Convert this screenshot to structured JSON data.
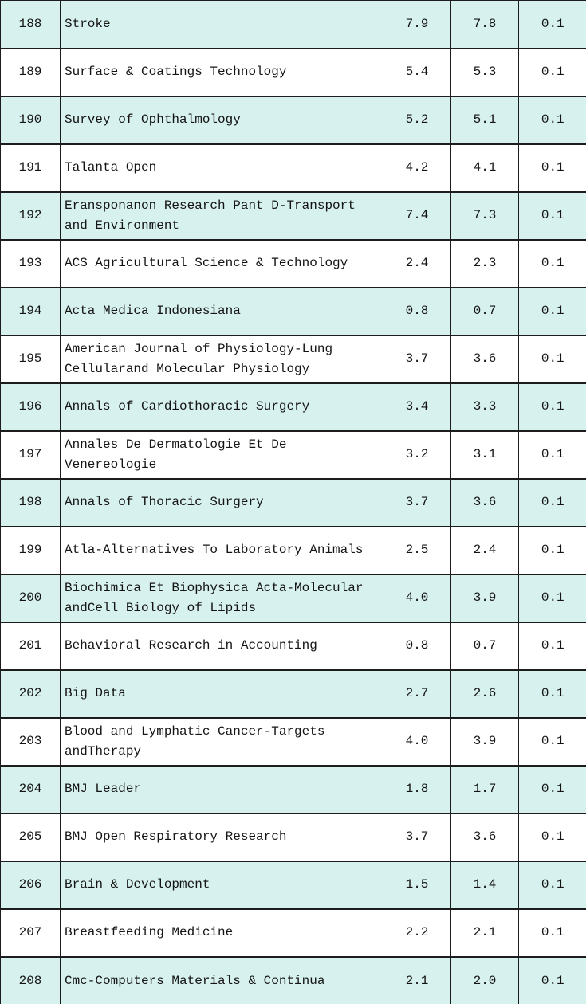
{
  "colors": {
    "stripe_fill": "#d7f1ee",
    "base_fill": "#ffffff",
    "border": "#1c1c1c",
    "text": "#141414"
  },
  "table": {
    "rows": [
      {
        "index": "188",
        "journal": "Stroke",
        "values": [
          "7.9",
          "7.8",
          "0.1"
        ]
      },
      {
        "index": "189",
        "journal": "Surface & Coatings Technology",
        "values": [
          "5.4",
          "5.3",
          "0.1"
        ]
      },
      {
        "index": "190",
        "journal": "Survey of Ophthalmology",
        "values": [
          "5.2",
          "5.1",
          "0.1"
        ]
      },
      {
        "index": "191",
        "journal": "Talanta Open",
        "values": [
          "4.2",
          "4.1",
          "0.1"
        ]
      },
      {
        "index": "192",
        "journal": "Eransponanon Research Pant D-Transport and Environment",
        "values": [
          "7.4",
          "7.3",
          "0.1"
        ]
      },
      {
        "index": "193",
        "journal": "ACS Agricultural Science & Technology",
        "values": [
          "2.4",
          "2.3",
          "0.1"
        ]
      },
      {
        "index": "194",
        "journal": "Acta Medica Indonesiana",
        "values": [
          "0.8",
          "0.7",
          "0.1"
        ]
      },
      {
        "index": "195",
        "journal": "American Journal of Physiology-Lung Cellularand Molecular Physiology",
        "values": [
          "3.7",
          "3.6",
          "0.1"
        ]
      },
      {
        "index": "196",
        "journal": "Annals of Cardiothoracic Surgery",
        "values": [
          "3.4",
          "3.3",
          "0.1"
        ]
      },
      {
        "index": "197",
        "journal": "Annales De Dermatologie Et De Venereologie",
        "values": [
          "3.2",
          "3.1",
          "0.1"
        ]
      },
      {
        "index": "198",
        "journal": "Annals of Thoracic Surgery",
        "values": [
          "3.7",
          "3.6",
          "0.1"
        ]
      },
      {
        "index": "199",
        "journal": "Atla-Alternatives To Laboratory Animals",
        "values": [
          "2.5",
          "2.4",
          "0.1"
        ]
      },
      {
        "index": "200",
        "journal": "Biochimica Et Biophysica Acta-Molecular andCell Biology of Lipids",
        "values": [
          "4.0",
          "3.9",
          "0.1"
        ]
      },
      {
        "index": "201",
        "journal": "Behavioral Research in Accounting",
        "values": [
          "0.8",
          "0.7",
          "0.1"
        ]
      },
      {
        "index": "202",
        "journal": "Big Data",
        "values": [
          "2.7",
          "2.6",
          "0.1"
        ]
      },
      {
        "index": "203",
        "journal": "Blood and Lymphatic Cancer-Targets andTherapy",
        "values": [
          "4.0",
          "3.9",
          "0.1"
        ]
      },
      {
        "index": "204",
        "journal": "BMJ Leader",
        "values": [
          "1.8",
          "1.7",
          "0.1"
        ]
      },
      {
        "index": "205",
        "journal": "BMJ Open Respiratory Research",
        "values": [
          "3.7",
          "3.6",
          "0.1"
        ]
      },
      {
        "index": "206",
        "journal": "Brain & Development",
        "values": [
          "1.5",
          "1.4",
          "0.1"
        ]
      },
      {
        "index": "207",
        "journal": "Breastfeeding Medicine",
        "values": [
          "2.2",
          "2.1",
          "0.1"
        ]
      },
      {
        "index": "208",
        "journal": "Cmc-Computers Materials & Continua",
        "values": [
          "2.1",
          "2.0",
          "0.1"
        ]
      }
    ]
  }
}
